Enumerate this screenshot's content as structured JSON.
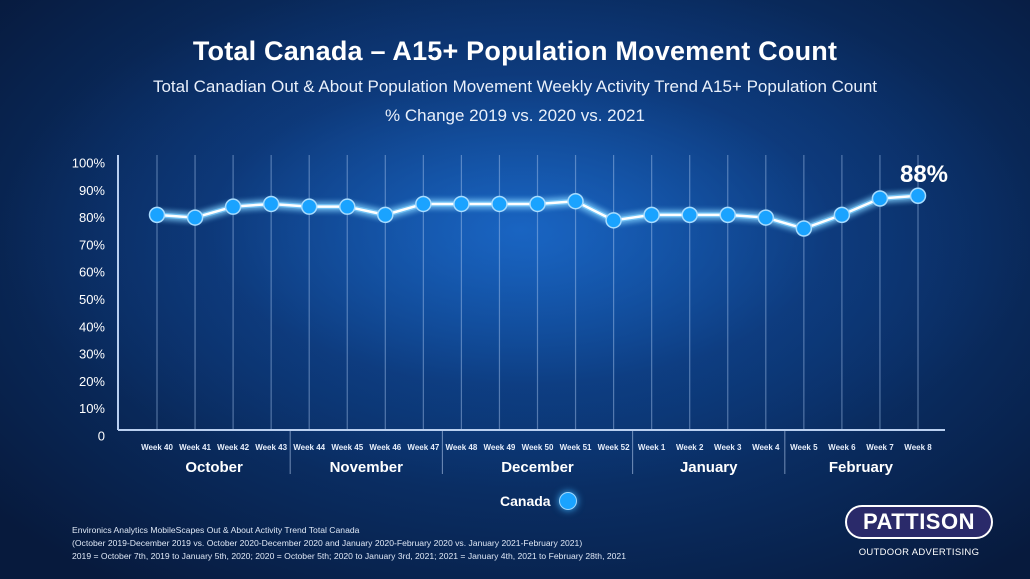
{
  "chart_data": {
    "type": "line",
    "title": "Total Canada – A15+ Population Movement Count",
    "subtitle": "Total Canadian Out & About Population Movement Weekly Activity Trend A15+ Population Count",
    "subtitle2": "% Change 2019 vs. 2020 vs. 2021",
    "xlabel": "",
    "ylabel": "",
    "ylim": [
      0,
      100
    ],
    "yticks": [
      "0",
      "10%",
      "20%",
      "30%",
      "40%",
      "50%",
      "60%",
      "70%",
      "80%",
      "90%",
      "100%"
    ],
    "grid": true,
    "categories": [
      "Week 40",
      "Week 41",
      "Week 42",
      "Week 43",
      "Week 44",
      "Week 45",
      "Week 46",
      "Week 47",
      "Week 48",
      "Week 49",
      "Week 50",
      "Week 51",
      "Week 52",
      "Week 1",
      "Week 2",
      "Week 3",
      "Week 4",
      "Week 5",
      "Week 6",
      "Week 7",
      "Week 8"
    ],
    "month_groups": [
      {
        "label": "October",
        "start": 0,
        "end": 3
      },
      {
        "label": "November",
        "start": 4,
        "end": 7
      },
      {
        "label": "December",
        "start": 8,
        "end": 12
      },
      {
        "label": "January",
        "start": 13,
        "end": 16
      },
      {
        "label": "February",
        "start": 17,
        "end": 20
      }
    ],
    "series": [
      {
        "name": "Canada",
        "color": "#1aa3ff",
        "values": [
          81,
          80,
          84,
          85,
          84,
          84,
          81,
          85,
          85,
          85,
          85,
          86,
          79,
          81,
          81,
          81,
          80,
          76,
          81,
          87,
          88
        ]
      }
    ],
    "annotations": [
      {
        "index": 20,
        "text": "88%"
      }
    ],
    "legend": {
      "position": "bottom-center",
      "label": "Canada"
    }
  },
  "footnotes": [
    "Environics Analytics MobileScapes Out & About Activity Trend Total Canada",
    "(October 2019-December 2019 vs. October 2020-December 2020 and January 2020-February 2020 vs. January 2021-February 2021)",
    "2019 = October 7th, 2019 to January 5th, 2020; 2020 = October 5th; 2020 to January 3rd, 2021; 2021 = January 4th, 2021 to February 28th, 2021"
  ],
  "logo": {
    "name": "PATTISON",
    "tagline": "OUTDOOR ADVERTISING"
  }
}
